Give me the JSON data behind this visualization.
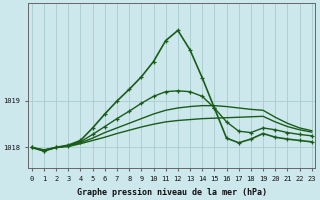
{
  "xlabel": "Graphe pression niveau de la mer (hPa)",
  "background_color": "#cce8ec",
  "grid_color": "#aacccc",
  "line_color": "#1a5c1a",
  "x_ticks": [
    0,
    1,
    2,
    3,
    4,
    5,
    6,
    7,
    8,
    9,
    10,
    11,
    12,
    13,
    14,
    15,
    16,
    17,
    18,
    19,
    20,
    21,
    22,
    23
  ],
  "y_ticks": [
    1018,
    1019
  ],
  "series": [
    {
      "y": [
        1018.0,
        1017.92,
        1018.0,
        1018.05,
        1018.15,
        1018.42,
        1018.72,
        1019.0,
        1019.25,
        1019.52,
        1019.85,
        1020.3,
        1020.52,
        1020.1,
        1019.5,
        1018.85,
        1018.2,
        1018.1,
        1018.18,
        1018.3,
        1018.22,
        1018.18,
        1018.15,
        1018.12
      ],
      "has_markers": true,
      "lw": 1.2
    },
    {
      "y": [
        1018.0,
        1017.95,
        1018.0,
        1018.02,
        1018.08,
        1018.15,
        1018.22,
        1018.3,
        1018.37,
        1018.44,
        1018.5,
        1018.55,
        1018.58,
        1018.6,
        1018.62,
        1018.63,
        1018.64,
        1018.65,
        1018.66,
        1018.67,
        1018.55,
        1018.45,
        1018.38,
        1018.33
      ],
      "has_markers": false,
      "lw": 1.0
    },
    {
      "y": [
        1018.0,
        1017.94,
        1018.0,
        1018.03,
        1018.1,
        1018.2,
        1018.32,
        1018.42,
        1018.52,
        1018.62,
        1018.72,
        1018.8,
        1018.85,
        1018.88,
        1018.9,
        1018.9,
        1018.88,
        1018.85,
        1018.82,
        1018.8,
        1018.65,
        1018.52,
        1018.42,
        1018.36
      ],
      "has_markers": false,
      "lw": 1.0
    },
    {
      "y": [
        1018.0,
        1017.93,
        1018.0,
        1018.04,
        1018.12,
        1018.28,
        1018.45,
        1018.62,
        1018.78,
        1018.95,
        1019.1,
        1019.2,
        1019.22,
        1019.2,
        1019.1,
        1018.85,
        1018.55,
        1018.35,
        1018.32,
        1018.42,
        1018.38,
        1018.32,
        1018.28,
        1018.25
      ],
      "has_markers": true,
      "lw": 1.0
    }
  ],
  "ylim": [
    1017.55,
    1021.1
  ],
  "xlim": [
    -0.3,
    23.3
  ]
}
